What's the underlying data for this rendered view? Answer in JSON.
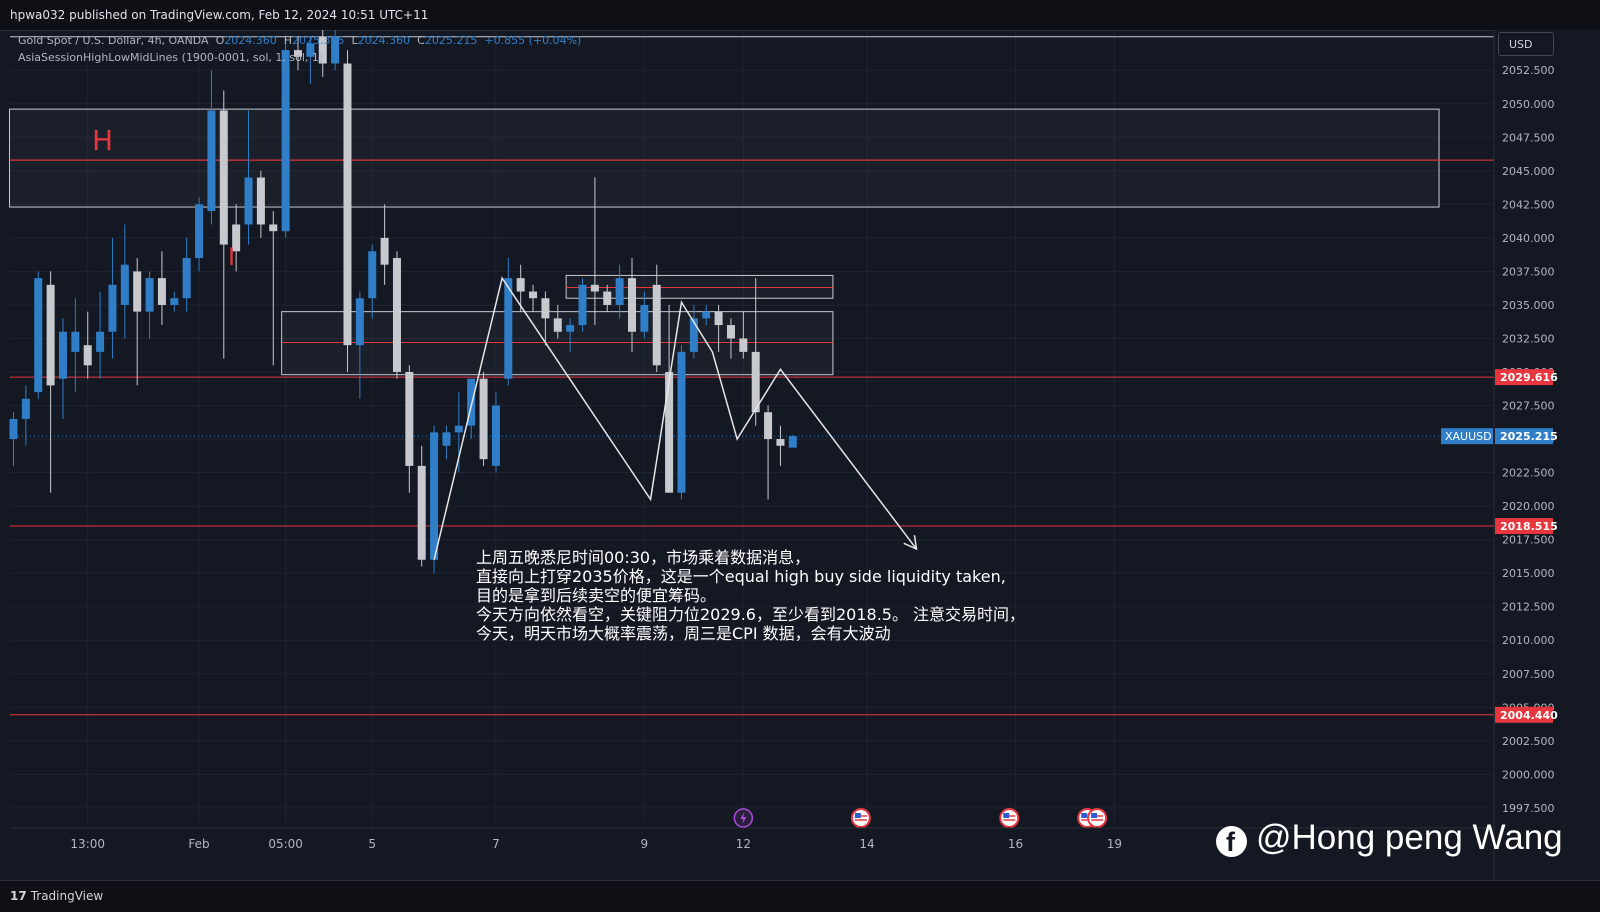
{
  "header": {
    "published_text": "hpwa032 published on TradingView.com, Feb 12, 2024 10:51 UTC+11"
  },
  "legend": {
    "symbol": "Gold Spot / U.S. Dollar, 4h, OANDA",
    "open_label": "O",
    "open": "2024.360",
    "high_label": "H",
    "high": "2025.305",
    "low_label": "L",
    "low": "2024.360",
    "close_label": "C",
    "close": "2025.215",
    "change": "+0.855 (+0.04%)",
    "indicator": "AsiaSessionHighLowMidLines (1900-0001, sol, 1, sol, 1)"
  },
  "currency_button": "USD",
  "footer": {
    "logo_mark": "17",
    "logo_text": "TradingView"
  },
  "watermark": {
    "icon": "facebook-icon",
    "text": "@Hong peng Wang"
  },
  "labels": {
    "H": "H",
    "I": "I"
  },
  "annotation": {
    "lines": [
      "上周五晚悉尼时间00:30，市场乘着数据消息，",
      "直接向上打穿2035价格，这是一个equal high buy side liquidity taken,",
      "目的是拿到后续卖空的便宜筹码。",
      "今天方向依然看空，关键阻力位2029.6，至少看到2018.5。 注意交易时间，",
      "今天，明天市场大概率震荡，周三是CPI 数据，会有大波动"
    ]
  },
  "colors": {
    "bull": "#2f7ec7",
    "bear": "#c7c9cf",
    "level": "#e8363f",
    "price_tag": "#2f7ec7",
    "background": "#141823",
    "grid": "#1f2330"
  },
  "chart_data": {
    "type": "candlestick",
    "symbol": "XAUUSD",
    "timeframe": "4h",
    "ylim": [
      1996,
      2055.5
    ],
    "y_ticks": [
      "1997.500",
      "2000.000",
      "2002.500",
      "2005.000",
      "2007.500",
      "2010.000",
      "2012.500",
      "2015.000",
      "2017.500",
      "2020.000",
      "2022.500",
      "2025.000",
      "2027.500",
      "2030.000",
      "2032.500",
      "2035.000",
      "2037.500",
      "2040.000",
      "2042.500",
      "2045.000",
      "2047.500",
      "2050.000",
      "2052.500"
    ],
    "x_ticks": [
      {
        "label": "13:00",
        "index": 6
      },
      {
        "label": "Feb",
        "index": 15
      },
      {
        "label": "05:00",
        "index": 22
      },
      {
        "label": "5",
        "index": 29
      },
      {
        "label": "7",
        "index": 39
      },
      {
        "label": "9",
        "index": 51
      },
      {
        "label": "12",
        "index": 59
      },
      {
        "label": "14",
        "index": 69
      },
      {
        "label": "16",
        "index": 81
      },
      {
        "label": "19",
        "index": 89
      }
    ],
    "candles": [
      [
        2025.0,
        2026.5,
        2023.0,
        2027.0
      ],
      [
        2026.5,
        2028.0,
        2024.5,
        2029.0
      ],
      [
        2028.5,
        2037.0,
        2028.0,
        2037.5
      ],
      [
        2036.5,
        2029.0,
        2021.0,
        2037.5
      ],
      [
        2029.5,
        2033.0,
        2026.5,
        2034.0
      ],
      [
        2031.5,
        2033.0,
        2028.5,
        2035.5
      ],
      [
        2032.0,
        2030.5,
        2029.5,
        2034.5
      ],
      [
        2031.5,
        2033.0,
        2029.5,
        2036.0
      ],
      [
        2033.0,
        2036.5,
        2031.0,
        2040.0
      ],
      [
        2035.0,
        2038.0,
        2032.5,
        2041.0
      ],
      [
        2037.5,
        2034.5,
        2029.0,
        2038.5
      ],
      [
        2034.5,
        2037.0,
        2032.5,
        2037.5
      ],
      [
        2037.0,
        2035.0,
        2033.5,
        2039.0
      ],
      [
        2035.0,
        2035.5,
        2034.5,
        2036.0
      ],
      [
        2035.5,
        2038.5,
        2034.5,
        2040.0
      ],
      [
        2038.5,
        2042.5,
        2037.5,
        2043.0
      ],
      [
        2042.0,
        2049.5,
        2041.0,
        2052.5
      ],
      [
        2049.5,
        2039.5,
        2031.0,
        2051.0
      ],
      [
        2041.0,
        2039.0,
        2037.5,
        2042.5
      ],
      [
        2041.0,
        2044.5,
        2039.5,
        2049.5
      ],
      [
        2044.5,
        2041.0,
        2040.0,
        2045.0
      ],
      [
        2041.0,
        2040.5,
        2030.5,
        2042.0
      ],
      [
        2040.5,
        2054.0,
        2040.0,
        2055.0
      ],
      [
        2054.0,
        2053.5,
        2052.5,
        2055.0
      ],
      [
        2053.5,
        2054.5,
        2051.5,
        2055.0
      ],
      [
        2055.0,
        2053.0,
        2052.0,
        2055.5
      ],
      [
        2053.0,
        2055.0,
        2052.5,
        2055.5
      ],
      [
        2053.0,
        2032.0,
        2030.0,
        2054.0
      ],
      [
        2032.0,
        2035.5,
        2028.0,
        2036.0
      ],
      [
        2035.5,
        2039.0,
        2034.0,
        2039.5
      ],
      [
        2040.0,
        2038.0,
        2036.5,
        2042.5
      ],
      [
        2038.5,
        2030.0,
        2029.5,
        2039.0
      ],
      [
        2030.0,
        2023.0,
        2021.0,
        2030.5
      ],
      [
        2023.0,
        2016.0,
        2015.5,
        2024.5
      ],
      [
        2016.0,
        2025.5,
        2015.0,
        2026.0
      ],
      [
        2024.5,
        2025.5,
        2023.5,
        2026.0
      ],
      [
        2025.5,
        2026.0,
        2022.5,
        2028.5
      ],
      [
        2026.0,
        2029.5,
        2025.0,
        2029.5
      ],
      [
        2029.5,
        2023.5,
        2023.0,
        2030.0
      ],
      [
        2023.0,
        2027.5,
        2022.5,
        2028.5
      ],
      [
        2029.5,
        2037.0,
        2029.0,
        2038.5
      ],
      [
        2037.0,
        2036.0,
        2034.5,
        2038.0
      ],
      [
        2036.0,
        2035.5,
        2034.5,
        2036.5
      ],
      [
        2035.5,
        2034.0,
        2032.0,
        2036.0
      ],
      [
        2034.0,
        2033.0,
        2032.5,
        2035.0
      ],
      [
        2033.0,
        2033.5,
        2031.5,
        2034.0
      ],
      [
        2033.5,
        2036.5,
        2033.0,
        2037.0
      ],
      [
        2036.5,
        2036.0,
        2033.5,
        2044.5
      ],
      [
        2036.0,
        2035.0,
        2034.5,
        2036.5
      ],
      [
        2035.0,
        2037.0,
        2034.0,
        2038.0
      ],
      [
        2037.0,
        2033.0,
        2031.5,
        2038.5
      ],
      [
        2033.0,
        2035.0,
        2032.5,
        2036.0
      ],
      [
        2036.5,
        2030.5,
        2030.0,
        2038.0
      ],
      [
        2030.0,
        2021.0,
        2021.0,
        2035.0
      ],
      [
        2021.0,
        2031.5,
        2020.5,
        2032.0
      ],
      [
        2031.5,
        2034.0,
        2031.0,
        2035.0
      ],
      [
        2034.0,
        2034.5,
        2033.5,
        2035.0
      ],
      [
        2034.5,
        2033.5,
        2031.5,
        2035.0
      ],
      [
        2033.5,
        2032.5,
        2031.0,
        2034.0
      ],
      [
        2032.5,
        2031.5,
        2031.0,
        2034.5
      ],
      [
        2031.5,
        2027.0,
        2026.0,
        2037.0
      ],
      [
        2027.0,
        2025.0,
        2020.5,
        2027.5
      ],
      [
        2025.0,
        2024.5,
        2023.0,
        2026.0
      ],
      [
        2024.36,
        2025.215,
        2024.36,
        2025.305
      ]
    ],
    "price_labels": [
      {
        "value": 2029.616,
        "text": "2029.616",
        "kind": "level"
      },
      {
        "value": 2025.215,
        "text": "2025.215",
        "kind": "current",
        "name": "XAUUSD"
      },
      {
        "value": 2018.515,
        "text": "2018.515",
        "kind": "level"
      },
      {
        "value": 2004.44,
        "text": "2004.440",
        "kind": "level"
      }
    ],
    "horizontal_levels": [
      2055.0,
      2045.8,
      2029.616,
      2018.515,
      2004.44
    ],
    "zones": [
      {
        "from_index": 0,
        "to_index": 115,
        "top": 2049.6,
        "bottom": 2042.3,
        "mid": 2045.8
      },
      {
        "from_index": 22,
        "to_index": 66,
        "top": 2034.5,
        "bottom": 2029.8,
        "mid": 2032.2
      },
      {
        "from_index": 45,
        "to_index": 66,
        "top": 2037.2,
        "bottom": 2035.5,
        "mid": 2036.3
      }
    ],
    "path": [
      {
        "index": 34,
        "price": 2016.0
      },
      {
        "index": 39.5,
        "price": 2037.0
      },
      {
        "index": 51.5,
        "price": 2020.5
      },
      {
        "index": 54,
        "price": 2035.2
      },
      {
        "index": 56.5,
        "price": 2031.5
      },
      {
        "index": 58.5,
        "price": 2025.0
      },
      {
        "index": 62,
        "price": 2030.2
      },
      {
        "index": 73,
        "price": 2016.8
      }
    ],
    "event_markers": [
      {
        "index": 59,
        "icon": "lightning-icon"
      },
      {
        "index": 68.5,
        "icon": "us-flag-icon"
      },
      {
        "index": 80.5,
        "icon": "us-flag-icon"
      },
      {
        "index": 86.8,
        "icon": "us-flag-icon"
      },
      {
        "index": 87.6,
        "icon": "us-flag-icon"
      }
    ]
  }
}
